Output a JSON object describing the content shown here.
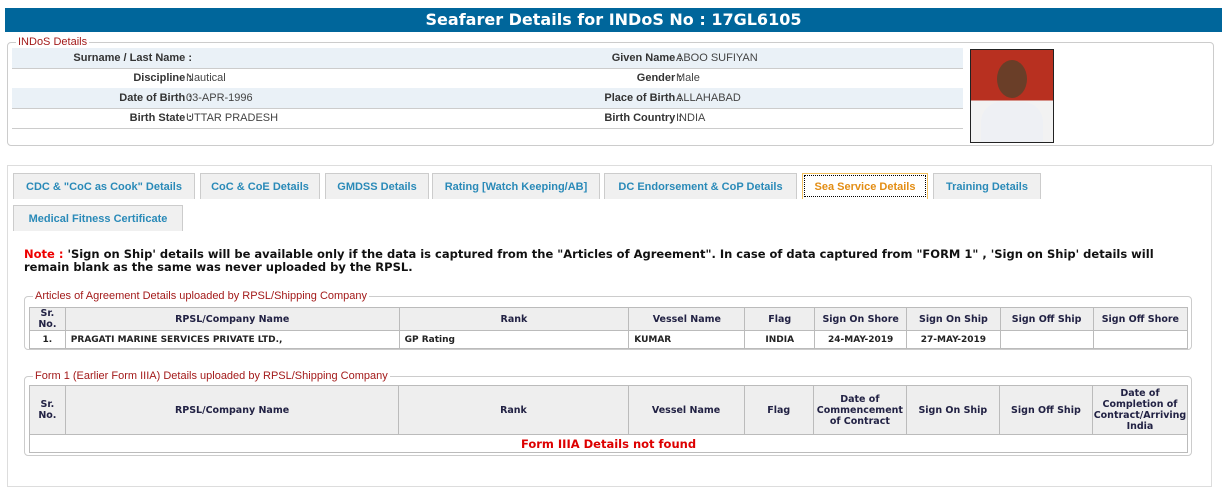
{
  "header": {
    "title": "Seafarer Details for INDoS No : 17GL6105"
  },
  "indos": {
    "legend": "INDoS Details",
    "rows": [
      [
        {
          "label": "Surname / Last Name :",
          "value": ""
        },
        {
          "label": "Given Name :",
          "value": "ABOO SUFIYAN"
        }
      ],
      [
        {
          "label": "Discipline :",
          "value": "Nautical"
        },
        {
          "label": "Gender :",
          "value": "Male"
        }
      ],
      [
        {
          "label": "Date of Birth :",
          "value": "03-APR-1996"
        },
        {
          "label": "Place of Birth :",
          "value": "ALLAHABAD"
        }
      ],
      [
        {
          "label": "Birth State :",
          "value": "UTTAR PRADESH"
        },
        {
          "label": "Birth Country :",
          "value": "INDIA"
        }
      ]
    ]
  },
  "tabs": [
    "CDC & \"CoC as Cook\" Details",
    "CoC & CoE Details",
    "GMDSS Details",
    "Rating [Watch Keeping/AB]",
    "DC Endorsement & CoP Details",
    "Sea Service Details",
    "Training Details",
    "Medical Fitness Certificate"
  ],
  "active_tab": "Sea Service Details",
  "note": {
    "prefix": "Note :",
    "text": " 'Sign on Ship' details will be available only if the data is captured from the \"Articles of Agreement\". In case of data captured from \"FORM 1\" , 'Sign on Ship' details will remain blank as the same was never uploaded by the RPSL."
  },
  "articles": {
    "legend": "Articles of Agreement Details uploaded by RPSL/Shipping Company",
    "columns": [
      "Sr. No.",
      "RPSL/Company Name",
      "Rank",
      "Vessel Name",
      "Flag",
      "Sign On Shore",
      "Sign On Ship",
      "Sign Off Ship",
      "Sign Off Shore"
    ],
    "rows": [
      [
        "1.",
        "PRAGATI MARINE SERVICES PRIVATE LTD.,",
        "GP Rating",
        "KUMAR",
        "INDIA",
        "24-MAY-2019",
        "27-MAY-2019",
        "",
        ""
      ]
    ]
  },
  "form1": {
    "legend": "Form 1 (Earlier Form IIIA) Details uploaded by RPSL/Shipping Company",
    "columns": [
      "Sr. No.",
      "RPSL/Company Name",
      "Rank",
      "Vessel Name",
      "Flag",
      "Date of Commencement of Contract",
      "Sign On Ship",
      "Sign Off Ship",
      "Date of Completion of Contract/Arriving India"
    ],
    "empty_message": "Form IIIA Details not found"
  },
  "colors": {
    "header": "#00669b",
    "legend": "#a31a1a",
    "tab_text": "#2a8ab8",
    "active_tab": "#e38d13"
  }
}
